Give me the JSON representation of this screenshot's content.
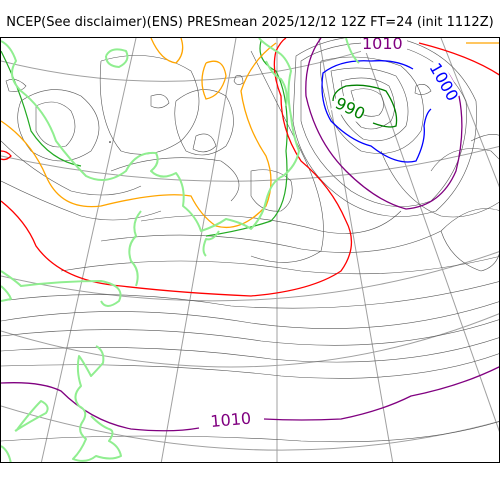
{
  "title": "NCEP(See disclaimer)(ENS) PRESmean 2025/12/12 12Z FT=24 (init 1112Z)",
  "map": {
    "field": "PRESmean",
    "contour_labels": [
      {
        "text": "1010",
        "color": "#800080"
      },
      {
        "text": "1000",
        "color": "#0000ff"
      },
      {
        "text": "990",
        "color": "#008000"
      },
      {
        "text": "1010",
        "color": "#800080"
      }
    ],
    "colors": {
      "isobar_1010": "#800080",
      "isobar_1005": "#ff0000",
      "isobar_1000": "#0000ff",
      "isobar_990": "#008000",
      "isobar_1020": "#ffa500",
      "isobar_1015": "#22aa22",
      "coastline": "#90ee90",
      "grid": "#a0a0a0",
      "isobar_other": "#555555"
    }
  }
}
